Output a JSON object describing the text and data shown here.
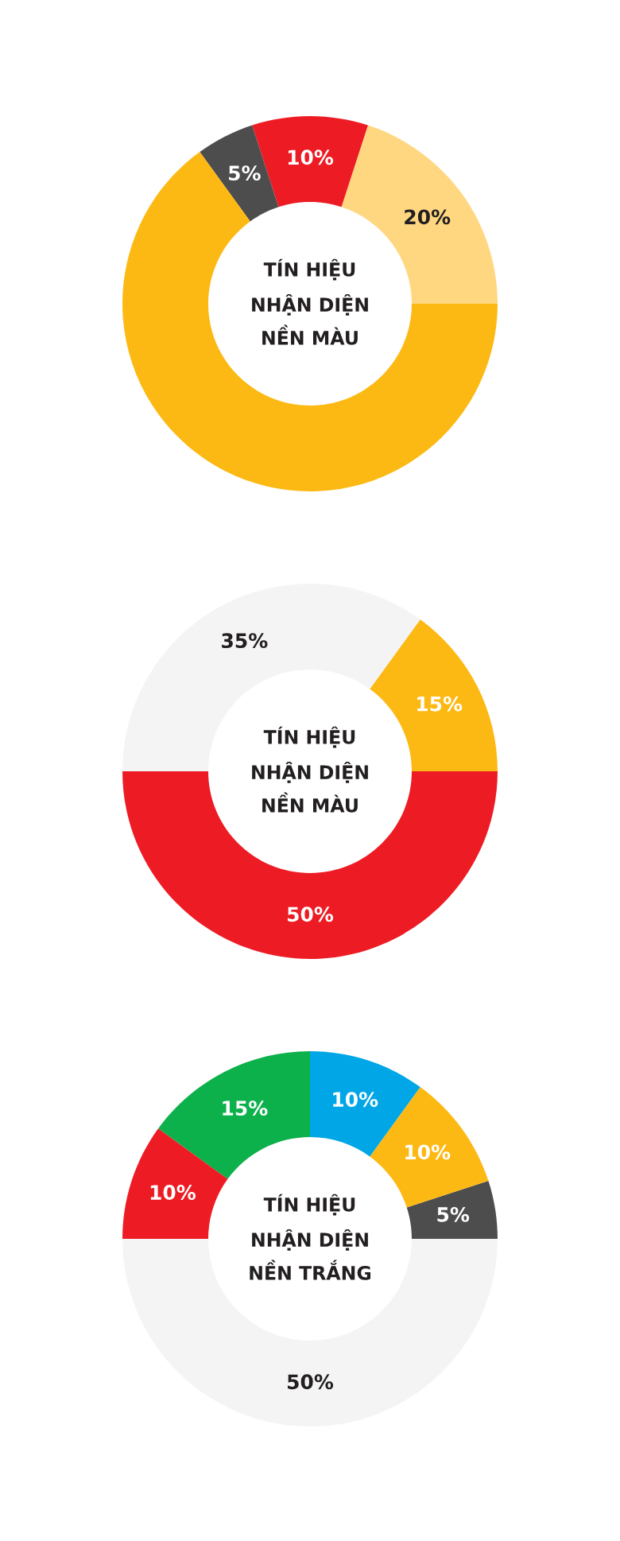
{
  "chart_data": [
    {
      "type": "donut",
      "title": "TÍN HIỆU\nNHẬN DIỆN\nNỀN MÀU",
      "categories": [
        null,
        null,
        null,
        null
      ],
      "values": [
        20,
        10,
        5,
        65
      ],
      "colors": [
        "#ffd780",
        "#ed1c24",
        "#4d4d4d",
        "#fdb913"
      ],
      "value_labels": [
        "20%",
        "10%",
        "5%",
        null
      ],
      "legend": false
    },
    {
      "type": "donut",
      "title": "TÍN HIỆU\nNHẬN DIỆN\nNỀN MÀU",
      "categories": [
        null,
        null,
        null
      ],
      "values": [
        15,
        35,
        50
      ],
      "colors": [
        "#fdb913",
        "#f4f4f4",
        "#ed1c24"
      ],
      "value_labels": [
        "15%",
        "35%",
        "50%"
      ],
      "legend": false
    },
    {
      "type": "donut",
      "title": "TÍN HIỆU\nNHẬN DIỆN\nNỀN TRẮNG",
      "categories": [
        null,
        null,
        null,
        null,
        null,
        null
      ],
      "values": [
        5,
        10,
        10,
        15,
        10,
        50
      ],
      "colors": [
        "#4d4d4d",
        "#fdb913",
        "#00a6e6",
        "#0db14b",
        "#ed1c24",
        "#f4f4f4"
      ],
      "value_labels": [
        "5%",
        "10%",
        "10%",
        "15%",
        "10%",
        "50%"
      ],
      "legend": false
    }
  ]
}
